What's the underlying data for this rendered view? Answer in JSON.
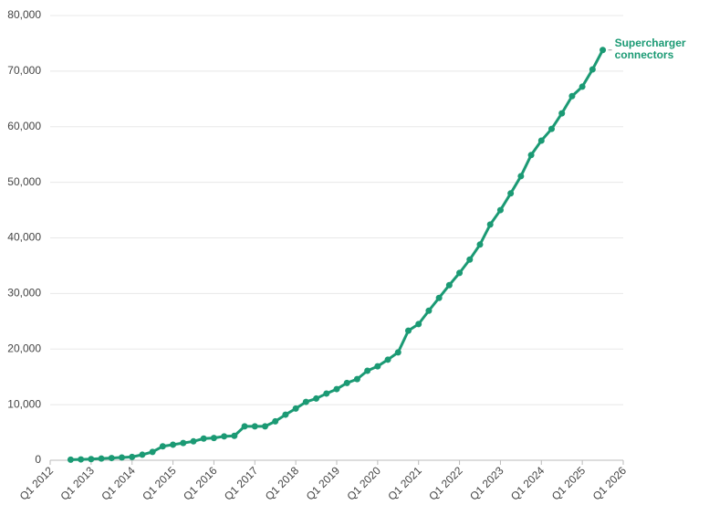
{
  "chart_data": {
    "type": "line",
    "x": [
      "Q3 2012",
      "Q4 2012",
      "Q1 2013",
      "Q2 2013",
      "Q3 2013",
      "Q4 2013",
      "Q1 2014",
      "Q2 2014",
      "Q3 2014",
      "Q4 2014",
      "Q1 2015",
      "Q2 2015",
      "Q3 2015",
      "Q4 2015",
      "Q1 2016",
      "Q2 2016",
      "Q3 2016",
      "Q4 2016",
      "Q1 2017",
      "Q2 2017",
      "Q3 2017",
      "Q4 2017",
      "Q1 2018",
      "Q2 2018",
      "Q3 2018",
      "Q4 2018",
      "Q1 2019",
      "Q2 2019",
      "Q3 2019",
      "Q4 2019",
      "Q1 2020",
      "Q2 2020",
      "Q3 2020",
      "Q4 2020",
      "Q1 2021",
      "Q2 2021",
      "Q3 2021",
      "Q4 2021",
      "Q1 2022",
      "Q2 2022",
      "Q3 2022",
      "Q4 2022",
      "Q1 2023",
      "Q2 2023",
      "Q3 2023",
      "Q4 2023",
      "Q1 2024",
      "Q2 2024",
      "Q3 2024",
      "Q4 2024",
      "Q1 2025",
      "Q2 2025",
      "Q3 2025"
    ],
    "series": [
      {
        "name": "Supercharger connectors",
        "color": "#1b9a74",
        "values": [
          100,
          150,
          200,
          300,
          400,
          500,
          600,
          1000,
          1500,
          2500,
          2800,
          3100,
          3400,
          3900,
          4000,
          4300,
          4400,
          6100,
          6100,
          6100,
          7000,
          8200,
          9300,
          10500,
          11100,
          12000,
          12800,
          13900,
          14600,
          16100,
          16900,
          18100,
          19400,
          23300,
          24500,
          26900,
          29200,
          31500,
          33700,
          36100,
          38800,
          42400,
          45000,
          48000,
          51100,
          54900,
          57500,
          59600,
          62400,
          65500,
          67200,
          70300,
          73800
        ]
      }
    ],
    "xlim": [
      "Q1 2012",
      "Q1 2026"
    ],
    "xticks": [
      "Q1 2012",
      "Q1 2013",
      "Q1 2014",
      "Q1 2015",
      "Q1 2016",
      "Q1 2017",
      "Q1 2018",
      "Q1 2019",
      "Q1 2020",
      "Q1 2021",
      "Q1 2022",
      "Q1 2023",
      "Q1 2024",
      "Q1 2025",
      "Q1 2026"
    ],
    "ylim": [
      0,
      80000
    ],
    "yticks": [
      0,
      {
        "value": 10000,
        "label": "10,000"
      },
      {
        "value": 20000,
        "label": "20,000"
      },
      {
        "value": 30000,
        "label": "30,000"
      },
      {
        "value": 40000,
        "label": "40,000"
      },
      {
        "value": 50000,
        "label": "50,000"
      },
      {
        "value": 60000,
        "label": "60,000"
      },
      {
        "value": 70000,
        "label": "70,000"
      },
      {
        "value": 80000,
        "label": "80,000"
      }
    ],
    "grid": true
  }
}
